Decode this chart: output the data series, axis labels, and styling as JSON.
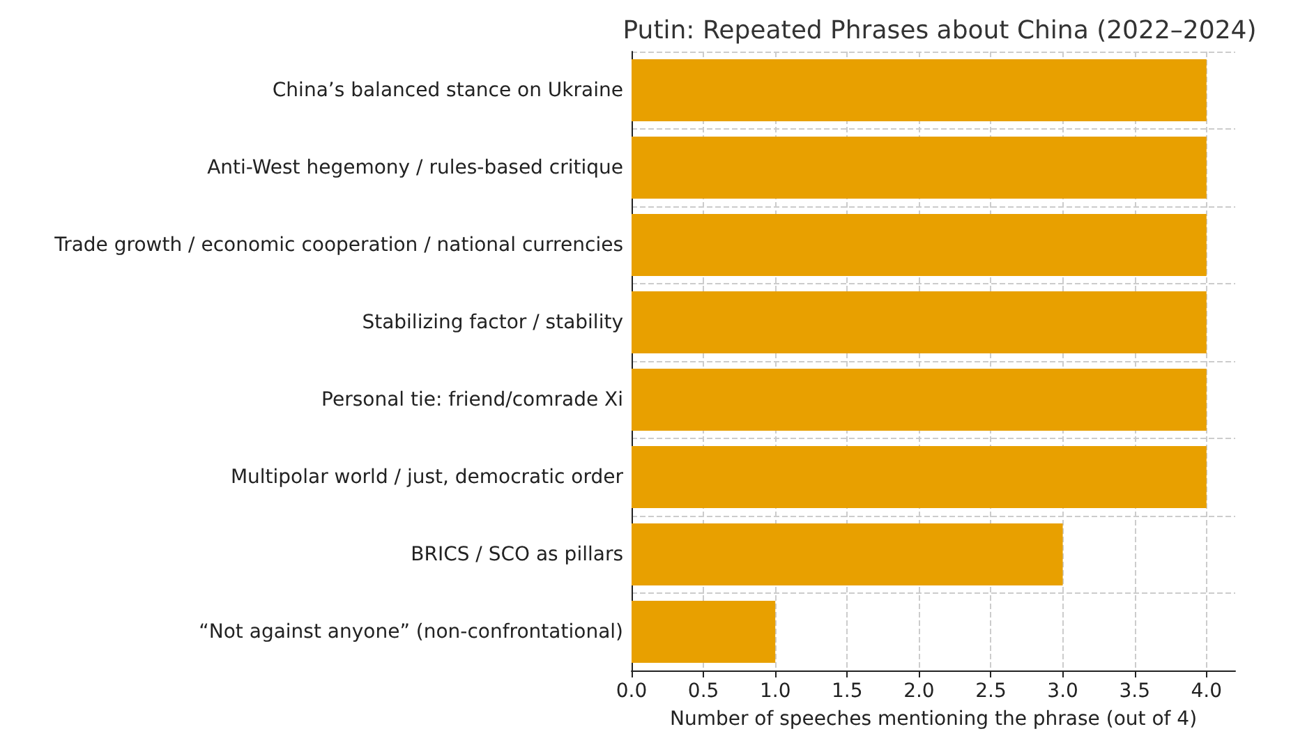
{
  "chart_data": {
    "type": "bar",
    "orientation": "horizontal",
    "title": "Putin: Repeated Phrases about China (2022–2024)",
    "xlabel": "Number of speeches mentioning the phrase (out of 4)",
    "categories": [
      "China’s balanced stance on Ukraine",
      "Anti-West hegemony / rules-based critique",
      "Trade growth / economic cooperation / national currencies",
      "Stabilizing factor / stability",
      "Personal tie: friend/comrade Xi",
      "Multipolar world / just, democratic order",
      "BRICS / SCO as pillars",
      "“Not against anyone” (non-confrontational)"
    ],
    "values": [
      4,
      4,
      4,
      4,
      4,
      4,
      3,
      1
    ],
    "color": "#e8a000",
    "xlim": [
      0,
      4.2
    ],
    "xticks": [
      {
        "value": 0,
        "label": "0.0"
      },
      {
        "value": 0.5,
        "label": "0.5"
      },
      {
        "value": 1,
        "label": "1.0"
      },
      {
        "value": 1.5,
        "label": "1.5"
      },
      {
        "value": 2,
        "label": "2.0"
      },
      {
        "value": 2.5,
        "label": "2.5"
      },
      {
        "value": 3,
        "label": "3.0"
      },
      {
        "value": 3.5,
        "label": "3.5"
      },
      {
        "value": 4,
        "label": "4.0"
      }
    ],
    "grid": true
  }
}
